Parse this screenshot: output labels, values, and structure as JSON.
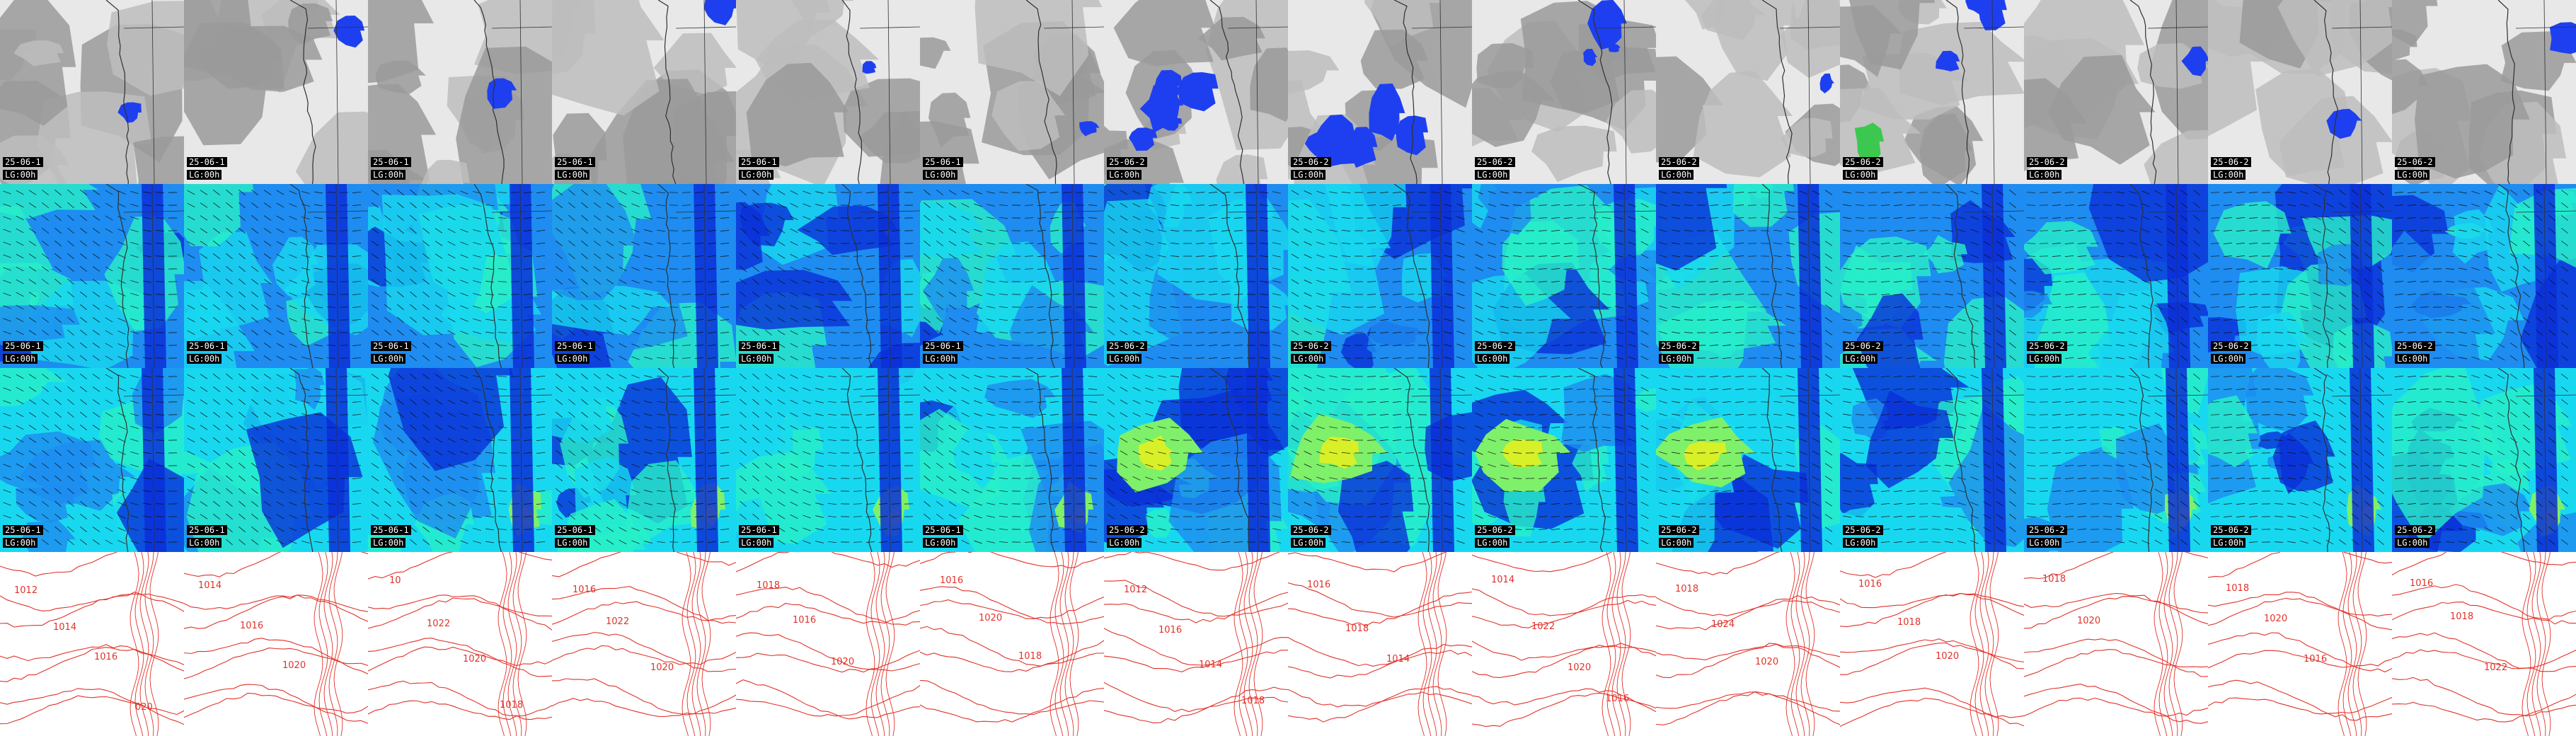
{
  "rows": [
    {
      "variable": "cloud_precip",
      "panels": [
        {
          "ts": "25-06-1",
          "lt": "LG:00h"
        },
        {
          "ts": "25-06-1",
          "lt": "LG:00h"
        },
        {
          "ts": "25-06-1",
          "lt": "LG:00h"
        },
        {
          "ts": "25-06-1",
          "lt": "LG:00h"
        },
        {
          "ts": "25-06-1",
          "lt": "LG:00h"
        },
        {
          "ts": "25-06-1",
          "lt": "LG:00h"
        },
        {
          "ts": "25-06-2",
          "lt": "LG:00h"
        },
        {
          "ts": "25-06-2",
          "lt": "LG:00h"
        },
        {
          "ts": "25-06-2",
          "lt": "LG:00h"
        },
        {
          "ts": "25-06-2",
          "lt": "LG:00h"
        },
        {
          "ts": "25-06-2",
          "lt": "LG:00h"
        },
        {
          "ts": "25-06-2",
          "lt": "LG:00h"
        },
        {
          "ts": "25-06-2",
          "lt": "LG:00h"
        },
        {
          "ts": "25-06-2",
          "lt": "LG:00h"
        }
      ]
    },
    {
      "variable": "wind_upper",
      "panels": [
        {
          "ts": "25-06-1",
          "lt": "LG:00h"
        },
        {
          "ts": "25-06-1",
          "lt": "LG:00h"
        },
        {
          "ts": "25-06-1",
          "lt": "LG:00h"
        },
        {
          "ts": "25-06-1",
          "lt": "LG:00h"
        },
        {
          "ts": "25-06-1",
          "lt": "LG:00h"
        },
        {
          "ts": "25-06-1",
          "lt": "LG:00h"
        },
        {
          "ts": "25-06-2",
          "lt": "LG:00h"
        },
        {
          "ts": "25-06-2",
          "lt": "LG:00h"
        },
        {
          "ts": "25-06-2",
          "lt": "LG:00h"
        },
        {
          "ts": "25-06-2",
          "lt": "LG:00h"
        },
        {
          "ts": "25-06-2",
          "lt": "LG:00h"
        },
        {
          "ts": "25-06-2",
          "lt": "LG:00h"
        },
        {
          "ts": "25-06-2",
          "lt": "LG:00h"
        },
        {
          "ts": "25-06-2",
          "lt": "LG:00h"
        }
      ]
    },
    {
      "variable": "wind_lower",
      "panels": [
        {
          "ts": "25-06-1",
          "lt": "LG:00h"
        },
        {
          "ts": "25-06-1",
          "lt": "LG:00h"
        },
        {
          "ts": "25-06-1",
          "lt": "LG:00h"
        },
        {
          "ts": "25-06-1",
          "lt": "LG:00h"
        },
        {
          "ts": "25-06-1",
          "lt": "LG:00h"
        },
        {
          "ts": "25-06-1",
          "lt": "LG:00h"
        },
        {
          "ts": "25-06-2",
          "lt": "LG:00h"
        },
        {
          "ts": "25-06-2",
          "lt": "LG:00h"
        },
        {
          "ts": "25-06-2",
          "lt": "LG:00h"
        },
        {
          "ts": "25-06-2",
          "lt": "LG:00h"
        },
        {
          "ts": "25-06-2",
          "lt": "LG:00h"
        },
        {
          "ts": "25-06-2",
          "lt": "LG:00h"
        },
        {
          "ts": "25-06-2",
          "lt": "LG:00h"
        },
        {
          "ts": "25-06-2",
          "lt": "LG:00h"
        }
      ]
    },
    {
      "variable": "pressure",
      "panels": [
        {
          "labels": [
            "1012",
            "1014",
            "1016",
            "020"
          ]
        },
        {
          "labels": [
            "1014",
            "1016",
            "1020"
          ]
        },
        {
          "labels": [
            "10",
            "1022",
            "1020",
            "1018"
          ]
        },
        {
          "labels": [
            "1016",
            "1022",
            "1020"
          ]
        },
        {
          "labels": [
            "1018",
            "1016",
            "1020"
          ]
        },
        {
          "labels": [
            "1016",
            "1020",
            "1018"
          ]
        },
        {
          "labels": [
            "1012",
            "1016",
            "1014",
            "1018"
          ]
        },
        {
          "labels": [
            "1016",
            "1018",
            "1014"
          ]
        },
        {
          "labels": [
            "1014",
            "1022",
            "1020",
            "1016"
          ]
        },
        {
          "labels": [
            "1018",
            "1024",
            "1020"
          ]
        },
        {
          "labels": [
            "1016",
            "1018",
            "1020"
          ]
        },
        {
          "labels": [
            "1018",
            "1020"
          ]
        },
        {
          "labels": [
            "1018",
            "1020",
            "1016"
          ]
        },
        {
          "labels": [
            "1016",
            "1018",
            "1022"
          ]
        }
      ]
    }
  ],
  "colors": {
    "cloud_light": "#e8e8e8",
    "cloud_mid": "#bdbdbd",
    "cloud_dark": "#9a9a9a",
    "precip": "#1e3ff0",
    "precip_green": "#3cc850",
    "wind_dark": "#0a2fd8",
    "wind_mid": "#1e8cf0",
    "wind_cyan": "#18d8f0",
    "wind_aqua": "#28f0c8",
    "wind_green": "#7ef06a",
    "wind_yellow": "#d8f028",
    "isobar": "#e0322a",
    "coast": "#303030"
  }
}
